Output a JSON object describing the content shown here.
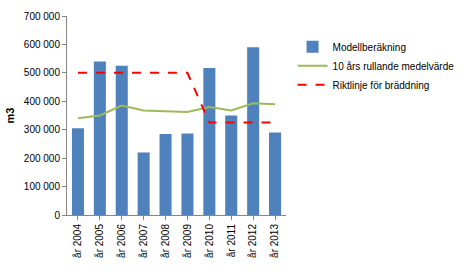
{
  "chart_data": {
    "type": "bar",
    "y_label": "m3",
    "categories": [
      "år 2004",
      "år 2005",
      "år 2006",
      "år 2007",
      "år 2008",
      "år 2009",
      "år 2010",
      "år 2011",
      "år 2012",
      "år 2013"
    ],
    "series": [
      {
        "name": "Modellberäkning",
        "type": "bar",
        "color": "#4f81bd",
        "values": [
          305000,
          540000,
          525000,
          220000,
          285000,
          287000,
          517000,
          350000,
          590000,
          290000
        ]
      },
      {
        "name": "10 års rullande medelvärde",
        "type": "line",
        "color": "#9bbb59",
        "line_style": "solid",
        "values": [
          340000,
          350000,
          385000,
          368000,
          365000,
          362000,
          380000,
          368000,
          393000,
          390000
        ]
      },
      {
        "name": "Riktlinje för bräddning",
        "type": "line",
        "color": "#ff0000",
        "line_style": "dashed",
        "values": [
          500000,
          500000,
          500000,
          500000,
          500000,
          500000,
          325000,
          325000,
          325000,
          325000
        ]
      }
    ],
    "ylim": [
      0,
      700000
    ],
    "yticks": [
      0,
      {
        "value": 100000,
        "label": "100 000"
      },
      {
        "value": 200000,
        "label": "200 000"
      },
      {
        "value": 300000,
        "label": "300 000"
      },
      {
        "value": 400000,
        "label": "400 000"
      },
      {
        "value": 500000,
        "label": "500 000"
      },
      {
        "value": 600000,
        "label": "600 000"
      },
      {
        "value": 700000,
        "label": "700 000"
      }
    ],
    "grid": false,
    "legend": "right"
  }
}
